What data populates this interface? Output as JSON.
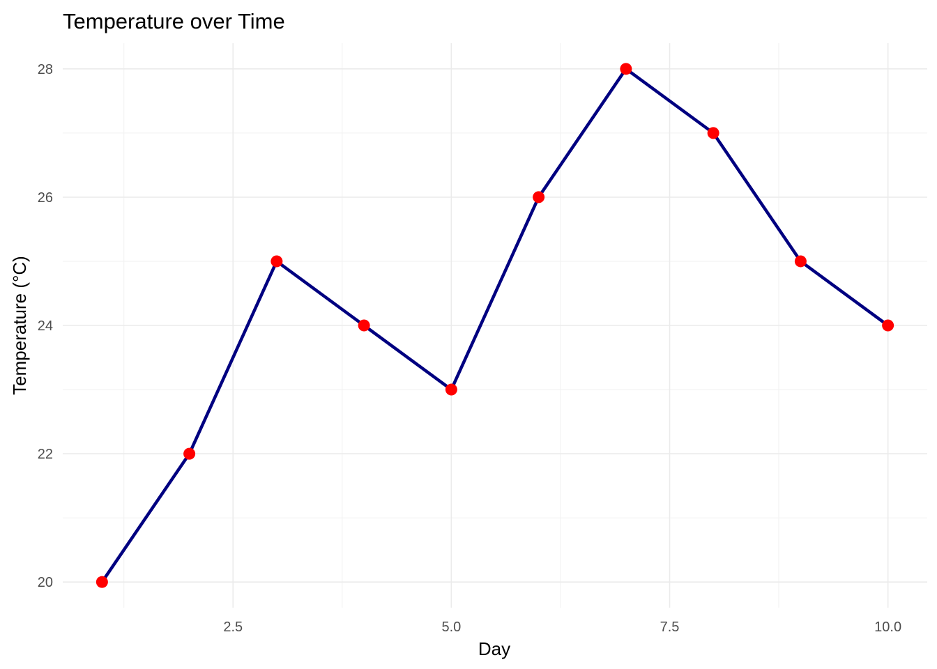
{
  "chart_data": {
    "type": "line",
    "title": "Temperature over Time",
    "xlabel": "Day",
    "ylabel": "Temperature (°C)",
    "x": [
      1,
      2,
      3,
      4,
      5,
      6,
      7,
      8,
      9,
      10
    ],
    "series": [
      {
        "values": [
          20,
          22,
          25,
          24,
          23,
          26,
          28,
          27,
          25,
          24
        ],
        "line_color": "#000080",
        "point_color": "#ff0000"
      }
    ],
    "xlim": [
      0.55,
      10.45
    ],
    "ylim": [
      19.6,
      28.4
    ],
    "x_major_ticks": [
      2.5,
      5.0,
      7.5,
      10.0
    ],
    "x_tick_labels": [
      "2.5",
      "5.0",
      "7.5",
      "10.0"
    ],
    "x_minor_ticks": [
      1.25,
      3.75,
      6.25,
      8.75
    ],
    "y_major_ticks": [
      20,
      22,
      24,
      26,
      28
    ],
    "y_tick_labels": [
      "20",
      "22",
      "24",
      "26",
      "28"
    ],
    "y_minor_ticks": [
      21,
      23,
      25,
      27
    ],
    "grid": true,
    "legend": "none",
    "theme": "minimal"
  }
}
